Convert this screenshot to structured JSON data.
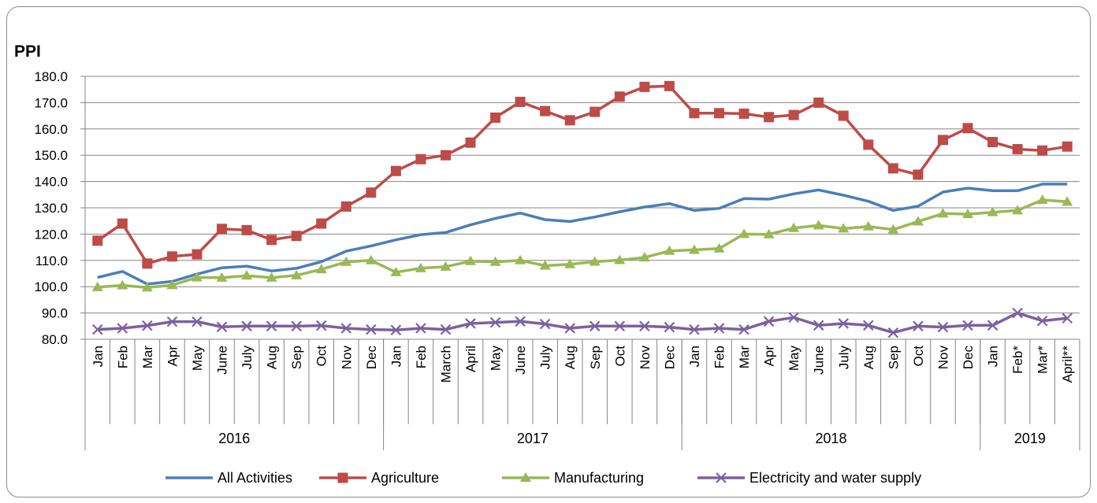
{
  "chart_data": {
    "type": "line",
    "title": "",
    "ylabel": "PPI",
    "xlabel": "",
    "ylim": [
      80,
      180
    ],
    "yticks": [
      "180.0",
      "170.0",
      "160.0",
      "150.0",
      "140.0",
      "130.0",
      "120.0",
      "110.0",
      "100.0",
      "90.0",
      "80.0"
    ],
    "grid": true,
    "legend_position": "bottom",
    "categories": [
      "Jan",
      "Feb",
      "Mar",
      "Apr",
      "May",
      "June",
      "July",
      "Aug",
      "Sep",
      "Oct",
      "Nov",
      "Dec",
      "Jan",
      "Feb",
      "March",
      "April",
      "May",
      "June",
      "July",
      "Aug",
      "Sep",
      "Oct",
      "Nov",
      "Dec",
      "Jan",
      "Feb",
      "Mar",
      "Apr",
      "May",
      "June",
      "July",
      "Aug",
      "Sep",
      "Oct",
      "Nov",
      "Dec",
      "Jan",
      "Feb*",
      "Mar*",
      "April**"
    ],
    "groups": [
      {
        "label": "2016",
        "count": 12
      },
      {
        "label": "2017",
        "count": 12
      },
      {
        "label": "2018",
        "count": 12
      },
      {
        "label": "2019",
        "count": 4
      }
    ],
    "series": [
      {
        "name": "All Activities",
        "color": "#4a7ebb",
        "marker": "none",
        "values": [
          103.5,
          105.8,
          101.0,
          102.0,
          104.8,
          107.2,
          107.8,
          106.0,
          107.0,
          109.5,
          113.5,
          115.5,
          117.8,
          119.8,
          120.6,
          123.5,
          126.0,
          128.0,
          125.5,
          124.8,
          126.5,
          128.5,
          130.3,
          131.6,
          129.0,
          129.8,
          133.5,
          133.3,
          135.3,
          136.8,
          134.8,
          132.5,
          129.0,
          130.6,
          136.0,
          137.5,
          136.5,
          136.5,
          139.0,
          139.0
        ]
      },
      {
        "name": "Agriculture",
        "color": "#be4b48",
        "marker": "square",
        "values": [
          117.5,
          124.0,
          108.8,
          111.5,
          112.3,
          122.0,
          121.5,
          117.8,
          119.3,
          124.0,
          130.5,
          135.8,
          144.0,
          148.5,
          150.0,
          154.8,
          164.3,
          170.3,
          166.8,
          163.3,
          166.5,
          172.3,
          176.0,
          176.3,
          166.0,
          166.0,
          165.8,
          164.5,
          165.3,
          170.0,
          165.0,
          154.0,
          145.0,
          142.6,
          155.8,
          160.3,
          155.0,
          152.3,
          151.8,
          153.3
        ]
      },
      {
        "name": "Manufacturing",
        "color": "#98b954",
        "marker": "triangle",
        "values": [
          99.8,
          100.5,
          99.7,
          100.6,
          103.5,
          103.4,
          104.2,
          103.4,
          104.3,
          106.6,
          109.4,
          110.0,
          105.5,
          107.0,
          107.6,
          109.7,
          109.4,
          110.0,
          108.0,
          108.5,
          109.5,
          110.1,
          111.1,
          113.6,
          114.0,
          114.5,
          120.0,
          119.9,
          122.3,
          123.3,
          122.1,
          122.9,
          121.7,
          124.8,
          127.8,
          127.6,
          128.3,
          129.0,
          133.0,
          132.3
        ]
      },
      {
        "name": "Electricity and water supply",
        "color": "#7d60a0",
        "marker": "x",
        "values": [
          83.7,
          84.2,
          85.2,
          86.7,
          86.7,
          84.7,
          85.0,
          85.0,
          85.0,
          85.2,
          84.2,
          83.7,
          83.5,
          84.2,
          83.7,
          86.0,
          86.4,
          86.8,
          85.8,
          84.2,
          85.0,
          85.0,
          85.0,
          84.6,
          83.7,
          84.2,
          83.7,
          86.8,
          88.3,
          85.3,
          86.0,
          85.3,
          82.5,
          85.0,
          84.6,
          85.3,
          85.3,
          90.0,
          87.0,
          88.0
        ]
      }
    ]
  }
}
